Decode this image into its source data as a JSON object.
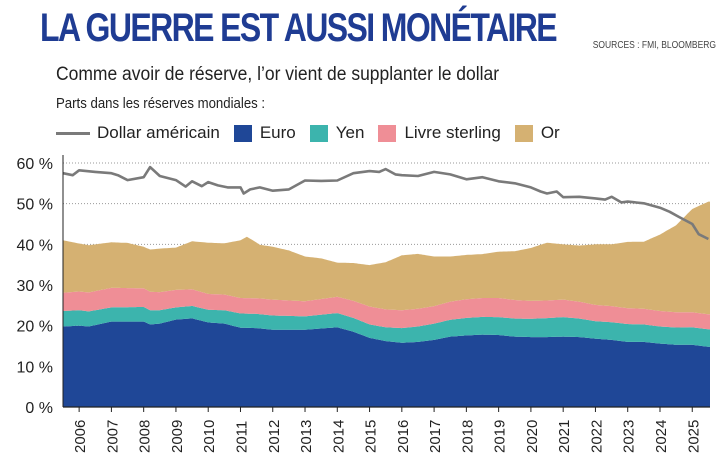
{
  "header": {
    "title": "LA GUERRE  EST AUSSI MONÉTAIRE",
    "sources": "SOURCES : FMI, BLOOMBERG",
    "subtitle": "Comme avoir de réserve, l’or vient de supplanter le dollar",
    "unit_label": "Parts dans les réserves mondiales :"
  },
  "legend": [
    {
      "name": "Dollar américain",
      "kind": "line"
    },
    {
      "name": "Euro",
      "kind": "area"
    },
    {
      "name": "Yen",
      "kind": "area"
    },
    {
      "name": "Livre sterling",
      "kind": "area"
    },
    {
      "name": "Or",
      "kind": "area"
    }
  ],
  "colors": {
    "dollar": "#7a7a7a",
    "euro": "#1f4797",
    "yen": "#3cb4ad",
    "sterling": "#ef8e96",
    "or": "#d5b172",
    "title": "#1f3c93"
  },
  "chart_data": {
    "type": "area",
    "x_range": [
      2005.5,
      2025.55
    ],
    "ylim": [
      0,
      60
    ],
    "y_ticks": [
      0,
      10,
      20,
      30,
      40,
      50,
      60
    ],
    "y_tick_labels": [
      "0 %",
      "10 %",
      "20 %",
      "30 %",
      "40 %",
      "50 %",
      "60 %"
    ],
    "x_tick_labels": [
      "2006",
      "2007",
      "2008",
      "2009",
      "2010",
      "2011",
      "2012",
      "2013",
      "2014",
      "2015",
      "2016",
      "2017",
      "2018",
      "2019",
      "2020",
      "2021",
      "2022",
      "2023",
      "2024",
      "2025"
    ],
    "stacked_series": [
      {
        "name": "Euro",
        "x": [
          2005.5,
          2006.0,
          2006.3,
          2007.0,
          2007.5,
          2008.0,
          2008.2,
          2008.5,
          2009.0,
          2009.5,
          2010.0,
          2010.5,
          2011.0,
          2011.5,
          2012.0,
          2012.5,
          2013.0,
          2013.5,
          2014.0,
          2014.5,
          2015.0,
          2015.5,
          2016.0,
          2016.5,
          2017.0,
          2017.5,
          2018.0,
          2018.5,
          2019.0,
          2019.5,
          2020.0,
          2020.5,
          2021.0,
          2021.5,
          2022.0,
          2022.5,
          2023.0,
          2023.5,
          2024.0,
          2024.5,
          2025.0,
          2025.5
        ],
        "values": [
          19.8,
          20.0,
          19.8,
          21.0,
          21.0,
          21.0,
          20.3,
          20.5,
          21.5,
          21.8,
          20.8,
          20.5,
          19.5,
          19.4,
          19.0,
          19.0,
          19.0,
          19.3,
          19.6,
          18.5,
          17.0,
          16.2,
          15.8,
          16.0,
          16.5,
          17.3,
          17.6,
          17.8,
          17.7,
          17.3,
          17.2,
          17.2,
          17.3,
          17.2,
          16.8,
          16.5,
          16.0,
          16.0,
          15.6,
          15.3,
          15.3,
          14.8
        ]
      },
      {
        "name": "Yen",
        "x": [
          2005.5,
          2006.0,
          2007.0,
          2008.0,
          2009.0,
          2010.0,
          2011.0,
          2012.0,
          2013.0,
          2014.0,
          2015.0,
          2015.5,
          2016.0,
          2017.0,
          2018.0,
          2019.0,
          2020.0,
          2021.0,
          2022.0,
          2023.0,
          2024.0,
          2025.0,
          2025.5
        ],
        "values": [
          3.8,
          3.8,
          3.5,
          3.6,
          3.0,
          3.1,
          3.5,
          3.5,
          3.3,
          3.5,
          3.3,
          3.4,
          3.6,
          4.0,
          4.3,
          4.4,
          4.5,
          4.8,
          4.3,
          4.4,
          4.2,
          4.3,
          4.3
        ]
      },
      {
        "name": "Livre sterling",
        "x": [
          2005.5,
          2006.0,
          2007.0,
          2008.0,
          2009.0,
          2010.0,
          2011.0,
          2012.0,
          2013.0,
          2014.0,
          2015.0,
          2016.0,
          2017.0,
          2018.0,
          2019.0,
          2020.0,
          2021.0,
          2022.0,
          2023.0,
          2024.0,
          2025.0,
          2025.5
        ],
        "values": [
          4.5,
          4.6,
          4.8,
          4.6,
          4.3,
          3.9,
          3.8,
          3.9,
          3.7,
          4.0,
          4.4,
          4.4,
          4.3,
          4.6,
          4.7,
          4.4,
          4.3,
          4.0,
          3.9,
          3.8,
          3.7,
          3.7
        ]
      },
      {
        "name": "Or",
        "x": [
          2005.5,
          2006.0,
          2006.5,
          2007.0,
          2007.5,
          2008.0,
          2008.5,
          2009.0,
          2009.5,
          2010.0,
          2010.5,
          2011.0,
          2011.2,
          2011.6,
          2012.0,
          2012.5,
          2013.0,
          2013.5,
          2014.0,
          2014.5,
          2015.0,
          2015.5,
          2016.0,
          2016.5,
          2017.0,
          2017.5,
          2018.0,
          2018.5,
          2019.0,
          2019.5,
          2020.0,
          2020.5,
          2021.0,
          2021.5,
          2022.0,
          2022.5,
          2023.0,
          2023.5,
          2024.0,
          2024.5,
          2025.0,
          2025.5
        ],
        "values": [
          12.9,
          11.8,
          11.5,
          11.2,
          11.1,
          10.2,
          10.7,
          10.4,
          11.8,
          12.6,
          12.6,
          14.2,
          15.1,
          13.2,
          13.0,
          12.3,
          11.0,
          10.0,
          8.4,
          9.3,
          10.2,
          11.6,
          13.5,
          13.5,
          12.2,
          11.1,
          10.9,
          10.8,
          11.4,
          12.0,
          13.0,
          14.2,
          13.6,
          13.8,
          14.9,
          15.2,
          16.3,
          16.5,
          18.8,
          21.4,
          25.4,
          27.7
        ]
      }
    ],
    "line_series": {
      "name": "Dollar américain",
      "x": [
        2005.5,
        2005.8,
        2006.0,
        2006.5,
        2007.0,
        2007.2,
        2007.5,
        2008.0,
        2008.2,
        2008.5,
        2009.0,
        2009.3,
        2009.5,
        2009.8,
        2010.0,
        2010.3,
        2010.6,
        2011.0,
        2011.1,
        2011.3,
        2011.6,
        2012.0,
        2012.5,
        2013.0,
        2013.5,
        2014.0,
        2014.5,
        2015.0,
        2015.3,
        2015.5,
        2015.8,
        2016.0,
        2016.5,
        2017.0,
        2017.5,
        2018.0,
        2018.5,
        2019.0,
        2019.5,
        2020.0,
        2020.3,
        2020.5,
        2020.8,
        2021.0,
        2021.5,
        2022.0,
        2022.3,
        2022.5,
        2022.8,
        2023.0,
        2023.5,
        2024.0,
        2024.3,
        2024.6,
        2025.0,
        2025.2,
        2025.5
      ],
      "values": [
        57.5,
        57.0,
        58.2,
        57.8,
        57.5,
        57.0,
        55.8,
        56.5,
        59.0,
        56.8,
        55.8,
        54.2,
        55.5,
        54.3,
        55.3,
        54.5,
        54.0,
        54.0,
        52.5,
        53.5,
        54.0,
        53.2,
        53.5,
        55.7,
        55.6,
        55.7,
        57.5,
        58.0,
        57.8,
        58.5,
        57.2,
        57.0,
        56.8,
        57.8,
        57.2,
        56.0,
        56.5,
        55.5,
        55.0,
        54.0,
        53.0,
        52.5,
        53.0,
        51.6,
        51.7,
        51.3,
        51.0,
        51.7,
        50.3,
        50.5,
        50.1,
        49.0,
        48.0,
        46.7,
        45.0,
        42.5,
        41.3
      ]
    }
  }
}
